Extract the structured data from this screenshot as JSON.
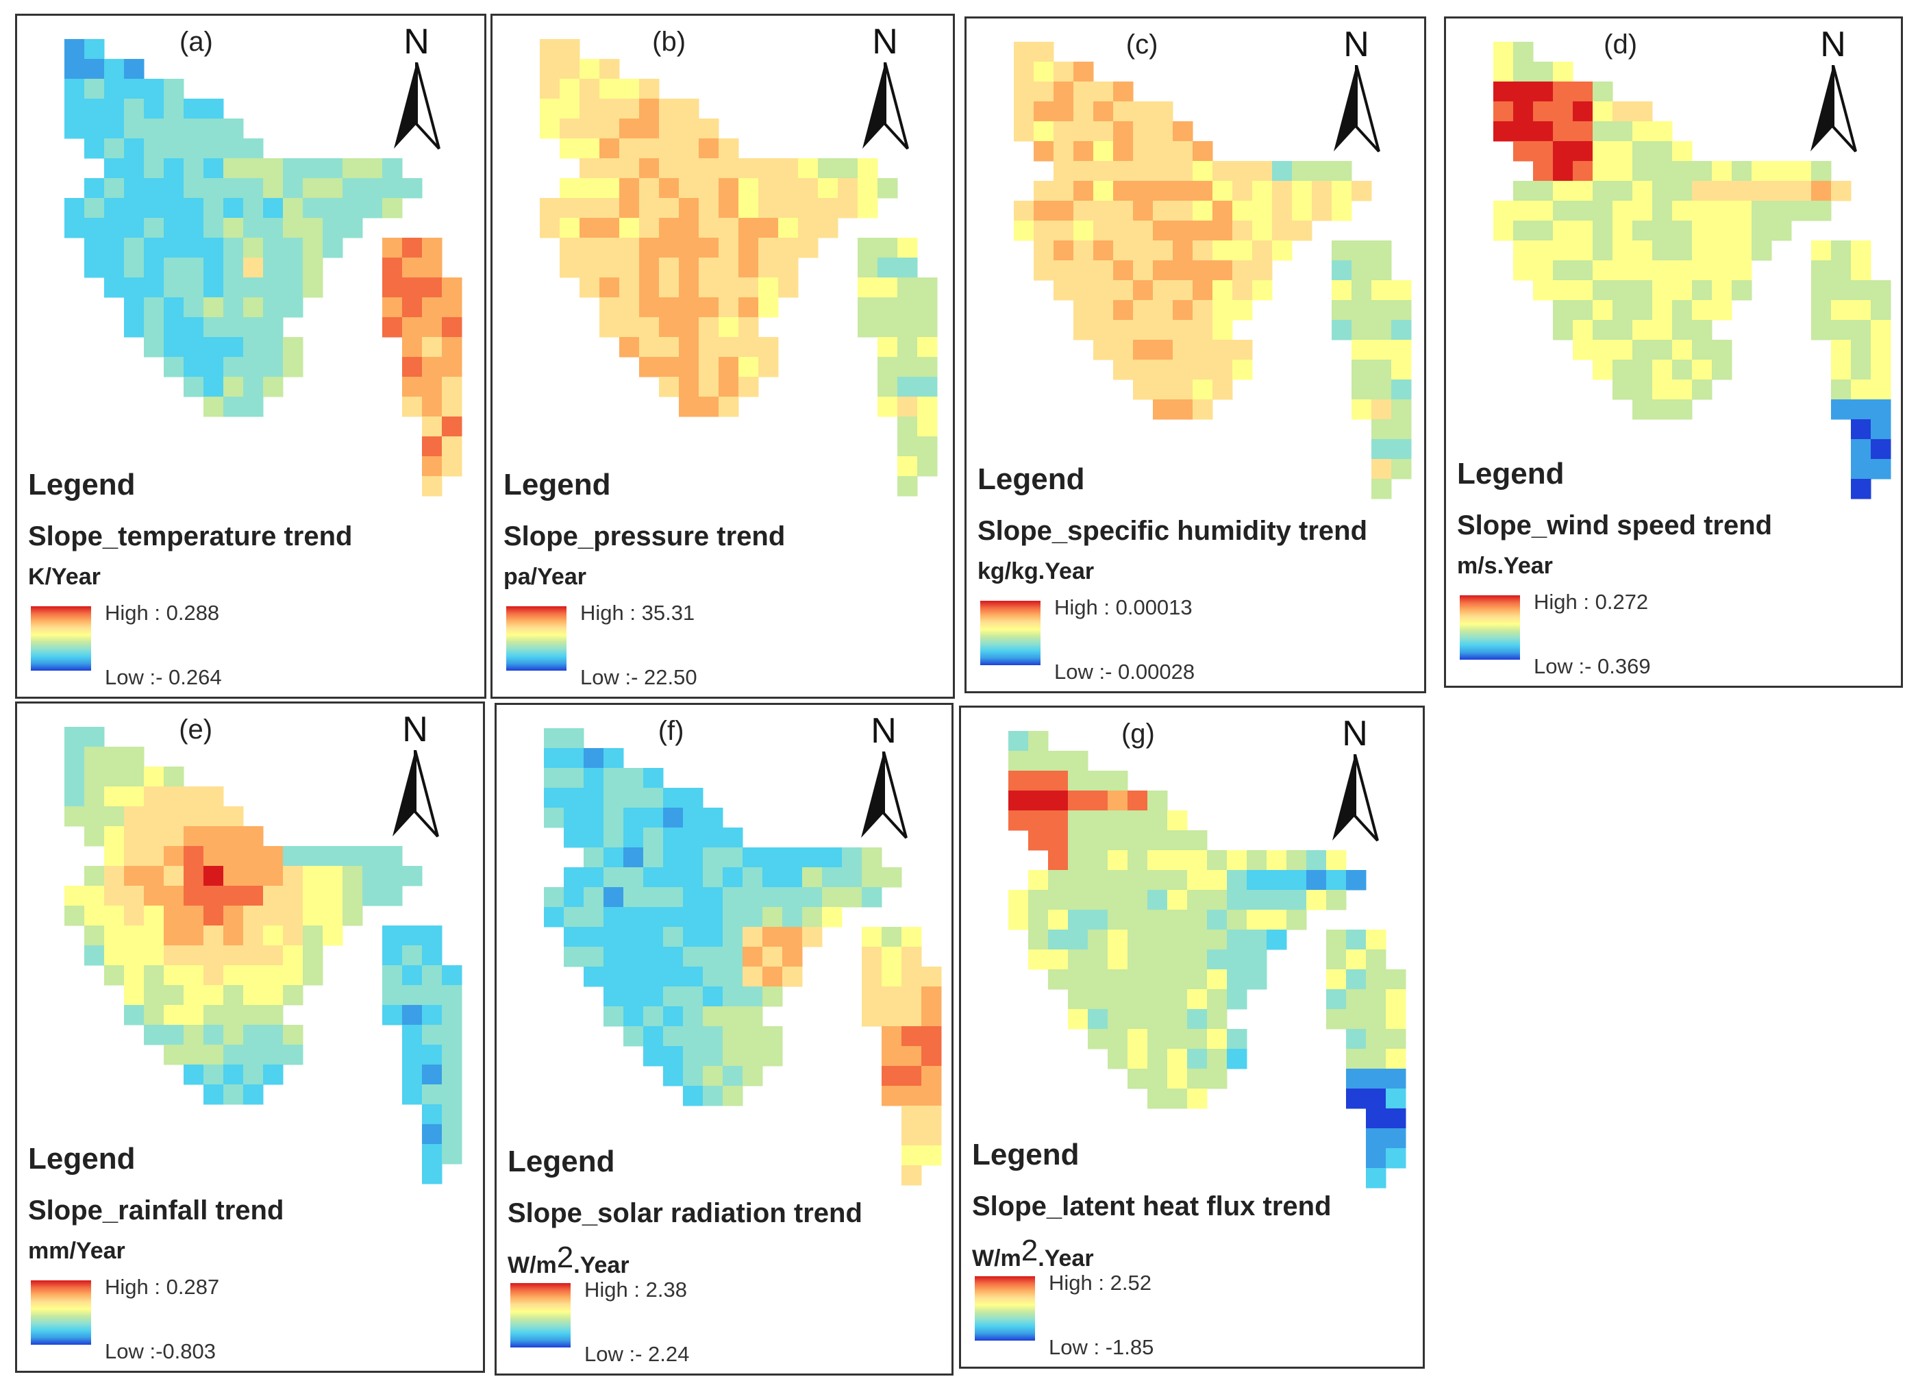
{
  "colors": {
    "ramp": [
      "#d7191c",
      "#f46d43",
      "#fdae61",
      "#fee090",
      "#ffff8c",
      "#c7e9a0",
      "#8fe0d0",
      "#4fd1f0",
      "#3a9fe6",
      "#1e3fd8"
    ],
    "border": "#333333",
    "text": "#222222"
  },
  "legend_word": "Legend",
  "north_letter": "N",
  "north_icon": "north-arrow-icon",
  "panels": [
    {
      "label": "(a)",
      "title": "Slope_temperature trend",
      "unit": "K/Year",
      "high": "High : 0.288",
      "low": "Low :- 0.264",
      "pattern": "cold"
    },
    {
      "label": "(b)",
      "title": "Slope_pressure trend",
      "unit": "pa/Year",
      "high": "High : 35.31",
      "low": "Low :- 22.50",
      "pattern": "warm"
    },
    {
      "label": "(c)",
      "title": "Slope_specific humidity trend",
      "unit": "kg/kg.Year",
      "high": "High : 0.00013",
      "low": "Low :- 0.00028",
      "pattern": "warm"
    },
    {
      "label": "(d)",
      "title": "Slope_wind speed trend",
      "unit": "m/s.Year",
      "high": "High : 0.272",
      "low": "Low :- 0.369",
      "pattern": "mid"
    },
    {
      "label": "(e)",
      "title": "Slope_rainfall trend",
      "unit": "mm/Year",
      "high": "High : 0.287",
      "low": "Low :-0.803",
      "pattern": "north-hot"
    },
    {
      "label": "(f)",
      "title": "Slope_solar radiation trend",
      "unit_prefix": "W/m",
      "unit_sup": "2",
      "unit_suffix": ".Year",
      "high": "High : 2.38",
      "low": "Low :- 2.24",
      "pattern": "east-hot"
    },
    {
      "label": "(g)",
      "title": "Slope_latent heat flux trend",
      "unit_prefix": "W/m",
      "unit_sup": "2",
      "unit_suffix": ".Year",
      "high": "High : 2.52",
      "low": "Low : -1.85",
      "pattern": "mixed"
    }
  ]
}
